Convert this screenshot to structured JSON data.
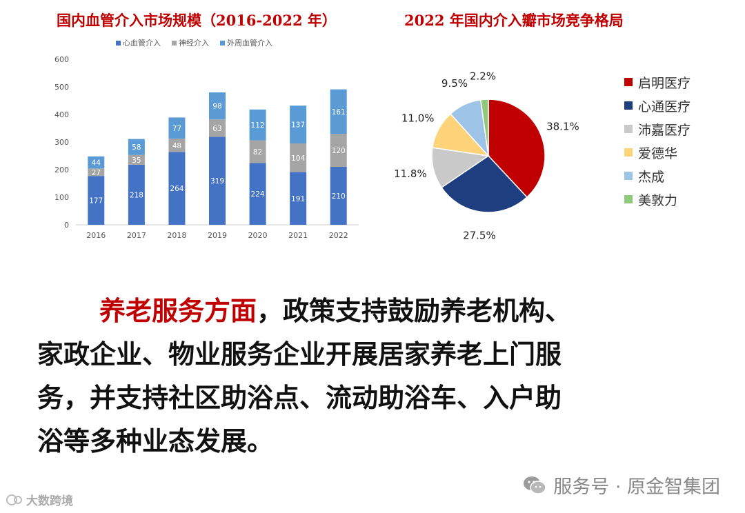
{
  "chart_data": [
    {
      "type": "bar",
      "stacked": true,
      "title": "国内血管介入市场规模（2016-2022 年）",
      "categories": [
        "2016",
        "2017",
        "2018",
        "2019",
        "2020",
        "2021",
        "2022"
      ],
      "series": [
        {
          "name": "心血管介入",
          "color": "#4472c4",
          "values": [
            177,
            218,
            264,
            319,
            224,
            191,
            210
          ]
        },
        {
          "name": "神经介入",
          "color": "#a5a5a5",
          "values": [
            27,
            35,
            48,
            63,
            82,
            104,
            120
          ]
        },
        {
          "name": "外周血管介入",
          "color": "#5b9bd5",
          "values": [
            44,
            58,
            77,
            98,
            112,
            137,
            161
          ]
        }
      ],
      "yticks": [
        "0",
        "100",
        "200",
        "300",
        "400",
        "500",
        "600"
      ],
      "ylim": [
        0,
        600
      ],
      "legend": "top"
    },
    {
      "type": "pie",
      "title": "2022 年国内介入瓣市场竞争格局",
      "slices": [
        {
          "name": "启明医疗",
          "value": 38.1,
          "label": "38.1%",
          "color": "#c00000"
        },
        {
          "name": "心通医疗",
          "value": 27.5,
          "label": "27.5%",
          "color": "#1f3e80"
        },
        {
          "name": "沛嘉医疗",
          "value": 11.8,
          "label": "11.8%",
          "color": "#c9c9c9"
        },
        {
          "name": "爱德华",
          "value": 11.0,
          "label": "11.0%",
          "color": "#ffd37a"
        },
        {
          "name": "杰成",
          "value": 9.5,
          "label": "9.5%",
          "color": "#9dc3e6"
        },
        {
          "name": "美敦力",
          "value": 2.2,
          "label": "2.2%",
          "color": "#8fc97a"
        }
      ],
      "legend": "right"
    }
  ],
  "paragraph": {
    "highlight": "养老服务方面",
    "line1_rest": "，政策支持鼓励养老机构、",
    "line2": "家政企业、物业服务企业开展居家养老上门服",
    "line3": "务，并支持社区助浴点、流动助浴车、入户助",
    "line4": "浴等多种业态发展。"
  },
  "footer": {
    "brand": "服务号 · 原金智集团",
    "corner": "大数跨境"
  }
}
